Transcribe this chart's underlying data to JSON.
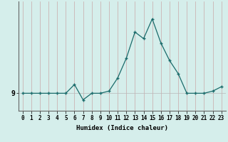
{
  "x": [
    0,
    1,
    2,
    3,
    4,
    5,
    6,
    7,
    8,
    9,
    10,
    11,
    12,
    13,
    14,
    15,
    16,
    17,
    18,
    19,
    20,
    21,
    22,
    23
  ],
  "y": [
    9.0,
    9.0,
    9.0,
    9.0,
    9.0,
    9.0,
    9.2,
    8.85,
    9.0,
    9.0,
    9.05,
    9.35,
    9.8,
    10.4,
    10.25,
    10.7,
    10.15,
    9.75,
    9.45,
    9.0,
    9.0,
    9.0,
    9.05,
    9.15
  ],
  "xlabel": "Humidex (Indice chaleur)",
  "ytick_val": 9,
  "background_color": "#d5eeeb",
  "line_color": "#1a6b6b",
  "vgrid_color": "#c9a8a8",
  "hgrid_color": "#b8b8b8",
  "xlim": [
    -0.5,
    23.5
  ],
  "ylim": [
    8.6,
    11.1
  ],
  "tick_fontsize": 5.5,
  "xlabel_fontsize": 6.5,
  "ylabel_fontsize": 7.0
}
